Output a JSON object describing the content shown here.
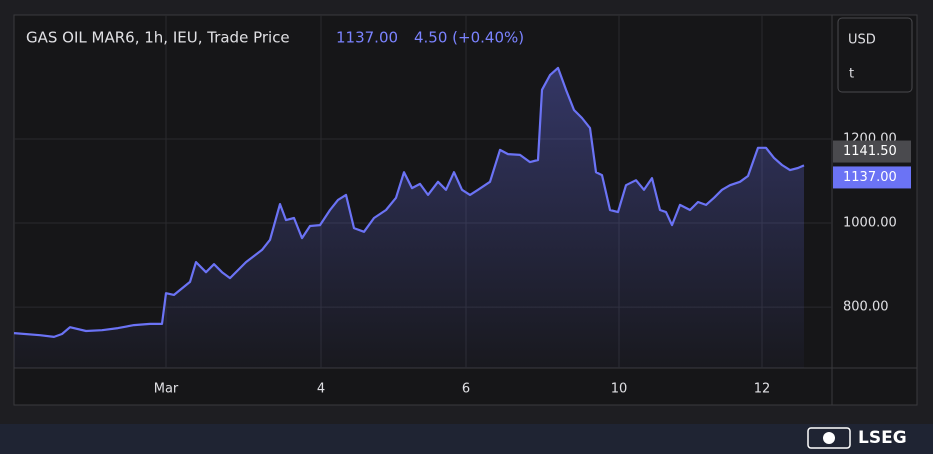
{
  "chart_data": {
    "type": "line",
    "title": "GAS OIL MAR6, 1h, IEU, Trade Price",
    "last_price": "1137.00",
    "change": "4.50 (+0.40%)",
    "currency": "USD",
    "unit": "t",
    "brand": "LSEG",
    "color": "#6b73f5",
    "grid": true,
    "x": [
      0,
      26,
      40,
      48,
      56,
      72,
      88,
      104,
      120,
      136,
      148,
      152,
      160,
      176,
      182,
      192,
      200,
      208,
      216,
      232,
      248,
      256,
      266,
      272,
      280,
      288,
      296,
      306,
      316,
      324,
      332,
      340,
      350,
      360,
      372,
      382,
      390,
      398,
      406,
      414,
      424,
      432,
      440,
      448,
      456,
      464,
      476,
      486,
      494,
      506,
      516,
      524,
      528,
      536,
      544,
      552,
      560,
      568,
      576,
      582,
      588,
      596,
      604,
      612,
      622,
      630,
      638,
      646,
      652,
      658,
      666,
      676,
      684,
      692,
      700,
      708,
      716,
      726,
      734,
      744,
      752,
      760,
      768,
      776,
      784,
      790
    ],
    "values": [
      738,
      733,
      729,
      736,
      752,
      743,
      745,
      750,
      757,
      760,
      760,
      833,
      829,
      860,
      907,
      883,
      902,
      883,
      869,
      907,
      936,
      960,
      1045,
      1007,
      1012,
      964,
      993,
      995,
      1031,
      1055,
      1067,
      988,
      979,
      1012,
      1031,
      1060,
      1121,
      1083,
      1093,
      1067,
      1098,
      1079,
      1121,
      1079,
      1067,
      1079,
      1098,
      1174,
      1164,
      1162,
      1145,
      1150,
      1317,
      1352,
      1369,
      1317,
      1269,
      1250,
      1226,
      1121,
      1114,
      1031,
      1026,
      1090,
      1102,
      1079,
      1107,
      1031,
      1026,
      995,
      1043,
      1031,
      1050,
      1043,
      1060,
      1079,
      1090,
      1098,
      1112,
      1179,
      1179,
      1155,
      1138,
      1126,
      1131,
      1137
    ],
    "xlim": [
      0,
      818
    ],
    "xticks": [
      {
        "value": 152,
        "label": "Mar"
      },
      {
        "value": 307,
        "label": "4"
      },
      {
        "value": 452,
        "label": "6"
      },
      {
        "value": 605,
        "label": "10"
      },
      {
        "value": 748,
        "label": "12"
      }
    ],
    "ylim": [
      655,
      1495
    ],
    "yticks": [
      {
        "value": 800,
        "label": "800.00"
      },
      {
        "value": 1000,
        "label": "1000.00"
      },
      {
        "value": 1200,
        "label": "1200.00"
      }
    ],
    "badges": [
      {
        "value": 1141.5,
        "label": "1141.50",
        "color": "#4a4a4e"
      },
      {
        "value": 1137,
        "label": "1137.00",
        "color": "#6b73f5"
      }
    ]
  }
}
